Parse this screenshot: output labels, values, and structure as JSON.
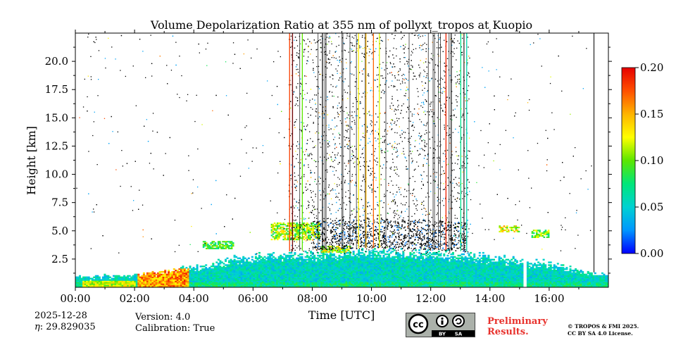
{
  "chart_data": {
    "type": "heatmap",
    "title": "Volume Depolarization Ratio at 355 nm of pollyxt_tropos at Kuopio",
    "xlabel": "Time [UTC]",
    "ylabel": "Height [km]",
    "x_range_hours": [
      0,
      18
    ],
    "x_ticks": [
      {
        "hour": 0,
        "label": "00:00"
      },
      {
        "hour": 2,
        "label": "02:00"
      },
      {
        "hour": 4,
        "label": "04:00"
      },
      {
        "hour": 6,
        "label": "06:00"
      },
      {
        "hour": 8,
        "label": "08:00"
      },
      {
        "hour": 10,
        "label": "10:00"
      },
      {
        "hour": 12,
        "label": "12:00"
      },
      {
        "hour": 14,
        "label": "14:00"
      },
      {
        "hour": 16,
        "label": "16:00"
      }
    ],
    "ylim_km": [
      0,
      22.5
    ],
    "y_ticks": [
      {
        "km": 2.5,
        "label": "2.5"
      },
      {
        "km": 5.0,
        "label": "5.0"
      },
      {
        "km": 7.5,
        "label": "7.5"
      },
      {
        "km": 10.0,
        "label": "10.0"
      },
      {
        "km": 12.5,
        "label": "12.5"
      },
      {
        "km": 15.0,
        "label": "15.0"
      },
      {
        "km": 17.5,
        "label": "17.5"
      },
      {
        "km": 20.0,
        "label": "20.0"
      }
    ],
    "colorbar": {
      "min": 0.0,
      "max": 0.2,
      "ticks": [
        {
          "value": 0.0,
          "label": "0.00"
        },
        {
          "value": 0.05,
          "label": "0.05"
        },
        {
          "value": 0.1,
          "label": "0.10"
        },
        {
          "value": 0.15,
          "label": "0.15"
        },
        {
          "value": 0.2,
          "label": "0.20"
        }
      ],
      "colormap": [
        "#0000ff",
        "#0096ff",
        "#00d2d2",
        "#00e67a",
        "#5ce600",
        "#ffff00",
        "#ffb400",
        "#ff5000",
        "#e60000"
      ]
    },
    "features": {
      "boundary_layer_top_km": [
        {
          "hour": 0,
          "km": 0.9
        },
        {
          "hour": 2,
          "km": 1.2
        },
        {
          "hour": 4,
          "km": 2.0
        },
        {
          "hour": 6,
          "km": 3.0
        },
        {
          "hour": 8,
          "km": 3.3
        },
        {
          "hour": 10,
          "km": 3.5
        },
        {
          "hour": 12,
          "km": 3.4
        },
        {
          "hour": 14,
          "km": 3.0
        },
        {
          "hour": 16,
          "km": 2.2
        },
        {
          "hour": 18,
          "km": 1.1
        }
      ],
      "high_depol_patches": [
        {
          "hour_start": 2.1,
          "hour_end": 3.8,
          "km_top": 1.6,
          "value": 0.16
        },
        {
          "hour_start": 0.2,
          "hour_end": 2.0,
          "km_top": 0.5,
          "value": 0.12
        }
      ],
      "elevated_aerosol_layers": [
        {
          "hour_start": 4.3,
          "hour_end": 5.3,
          "km_bottom": 3.5,
          "km_top": 4.2,
          "value": 0.09
        },
        {
          "hour_start": 6.6,
          "hour_end": 8.2,
          "km_bottom": 4.3,
          "km_top": 5.8,
          "value": 0.11
        },
        {
          "hour_start": 8.3,
          "hour_end": 9.3,
          "km_bottom": 3.2,
          "km_top": 3.8,
          "value": 0.12
        },
        {
          "hour_start": 14.3,
          "hour_end": 15.0,
          "km_bottom": 5.0,
          "km_top": 5.6,
          "value": 0.12
        },
        {
          "hour_start": 15.4,
          "hour_end": 16.0,
          "km_bottom": 4.5,
          "km_top": 5.2,
          "value": 0.1
        }
      ],
      "noisy_period_hours": [
        7.2,
        13.3
      ],
      "data_gap_hours": [
        15.1,
        15.2
      ],
      "no_data_after_hour": 17.5,
      "vertical_streaks": [
        {
          "hour": 7.22,
          "value": 0.18
        },
        {
          "hour": 7.32,
          "value": 0.2
        },
        {
          "hour": 7.65,
          "value": 0.1
        },
        {
          "hour": 9.55,
          "value": 0.13
        },
        {
          "hour": 9.8,
          "value": 0.15
        },
        {
          "hour": 10.05,
          "value": 0.17
        },
        {
          "hour": 10.25,
          "value": 0.12
        },
        {
          "hour": 12.5,
          "value": 0.19
        },
        {
          "hour": 13.0,
          "value": 0.07
        },
        {
          "hour": 13.2,
          "value": 0.06
        }
      ]
    }
  },
  "footer": {
    "date": "2025-12-28",
    "eta_symbol": "𝜂",
    "eta_label": ": 29.829035",
    "version": "Version: 4.0",
    "calibration": "Calibration: True",
    "license_badge_text": "cc",
    "license_by": "BY",
    "license_sa": "SA",
    "preliminary_line1": "Preliminary",
    "preliminary_line2": "Results.",
    "copyright_line1": "© TROPOS & FMI 2025.",
    "copyright_line2": "CC BY SA 4.0 License."
  }
}
